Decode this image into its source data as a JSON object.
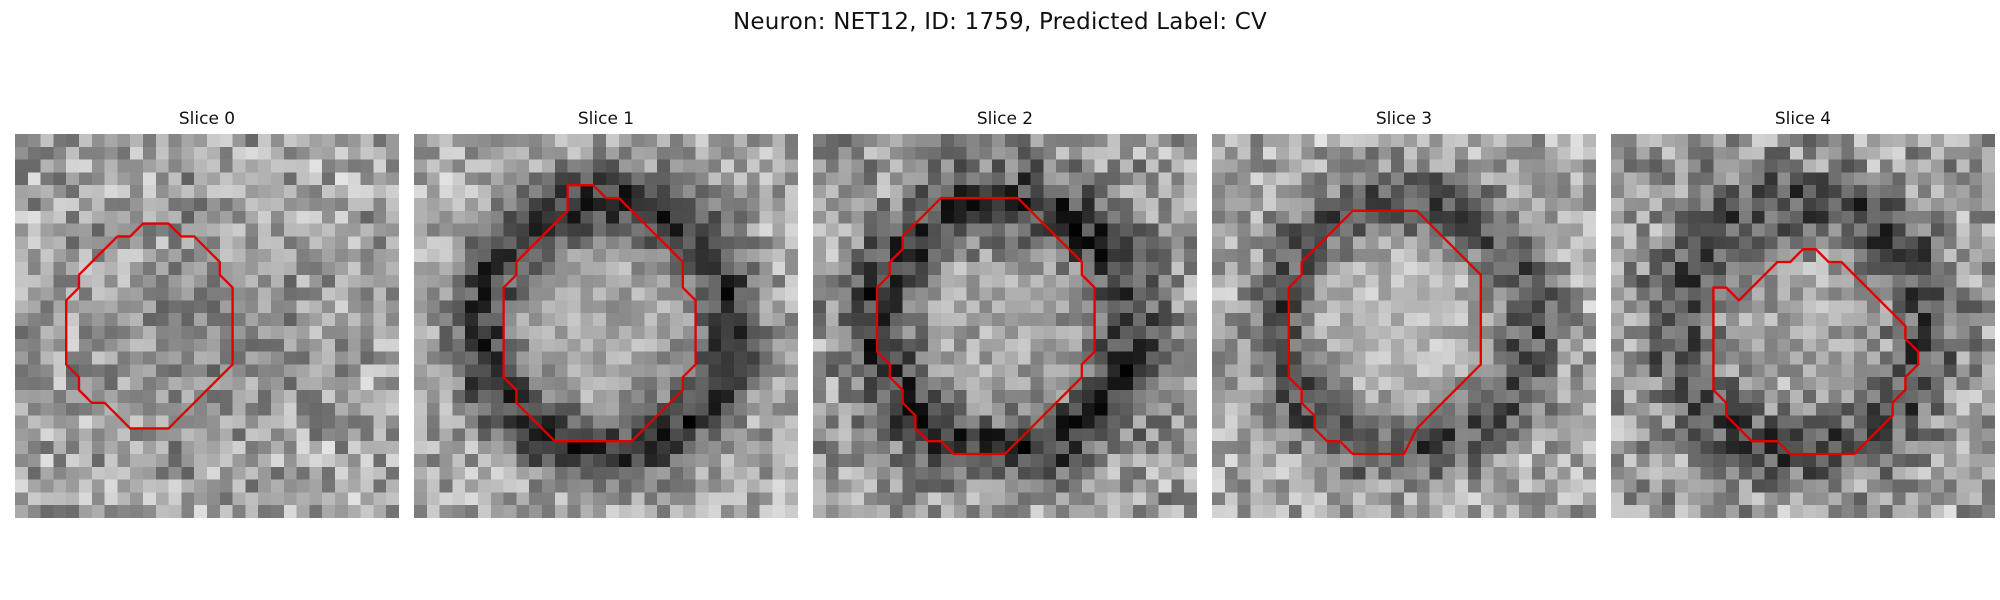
{
  "figure": {
    "title": "Neuron: NET12, ID: 1759, Predicted Label: CV"
  },
  "colors": {
    "background": "#ffffff",
    "contour": "#e00000",
    "text": "#111111"
  },
  "panels": [
    {
      "title": "Slice 0",
      "texture": {
        "seed": 11,
        "background_level": 0.64,
        "noise": 0.23,
        "ring_strength": 0.02,
        "core_level": 0.3,
        "core_strength": 0.4
      },
      "contour": [
        [
          10,
          7
        ],
        [
          12,
          7
        ],
        [
          13,
          8
        ],
        [
          14,
          8
        ],
        [
          15,
          9
        ],
        [
          16,
          10
        ],
        [
          16,
          11
        ],
        [
          17,
          12
        ],
        [
          17,
          13
        ],
        [
          17,
          14
        ],
        [
          17,
          15
        ],
        [
          17,
          16
        ],
        [
          17,
          17
        ],
        [
          17,
          18
        ],
        [
          16,
          19
        ],
        [
          15,
          20
        ],
        [
          14,
          21
        ],
        [
          13,
          22
        ],
        [
          12,
          23
        ],
        [
          10,
          23
        ],
        [
          9,
          23
        ],
        [
          8,
          22
        ],
        [
          7,
          21
        ],
        [
          6,
          21
        ],
        [
          5,
          20
        ],
        [
          5,
          19
        ],
        [
          4,
          18
        ],
        [
          4,
          17
        ],
        [
          4,
          16
        ],
        [
          4,
          15
        ],
        [
          4,
          14
        ],
        [
          4,
          13
        ],
        [
          5,
          12
        ],
        [
          5,
          11
        ],
        [
          6,
          10
        ],
        [
          7,
          9
        ],
        [
          8,
          8
        ],
        [
          9,
          8
        ],
        [
          10,
          7
        ]
      ]
    },
    {
      "title": "Slice 1",
      "texture": {
        "seed": 23,
        "background_level": 0.66,
        "noise": 0.2,
        "ring_strength": 0.46,
        "core_level": 0.6,
        "core_strength": 0.34
      },
      "contour": [
        [
          12,
          4
        ],
        [
          14,
          4
        ],
        [
          15,
          5
        ],
        [
          16,
          5
        ],
        [
          17,
          6
        ],
        [
          18,
          7
        ],
        [
          19,
          8
        ],
        [
          20,
          9
        ],
        [
          21,
          10
        ],
        [
          21,
          11
        ],
        [
          21,
          12
        ],
        [
          22,
          13
        ],
        [
          22,
          14
        ],
        [
          22,
          15
        ],
        [
          22,
          16
        ],
        [
          22,
          17
        ],
        [
          22,
          18
        ],
        [
          21,
          19
        ],
        [
          21,
          20
        ],
        [
          20,
          21
        ],
        [
          19,
          22
        ],
        [
          18,
          23
        ],
        [
          17,
          24
        ],
        [
          15,
          24
        ],
        [
          13,
          24
        ],
        [
          11,
          24
        ],
        [
          10,
          23
        ],
        [
          9,
          22
        ],
        [
          8,
          21
        ],
        [
          8,
          20
        ],
        [
          7,
          19
        ],
        [
          7,
          18
        ],
        [
          7,
          17
        ],
        [
          7,
          16
        ],
        [
          7,
          15
        ],
        [
          7,
          14
        ],
        [
          7,
          13
        ],
        [
          7,
          12
        ],
        [
          8,
          11
        ],
        [
          8,
          10
        ],
        [
          9,
          9
        ],
        [
          10,
          8
        ],
        [
          11,
          7
        ],
        [
          12,
          6
        ],
        [
          12,
          5
        ],
        [
          12,
          4
        ]
      ]
    },
    {
      "title": "Slice 2",
      "texture": {
        "seed": 37,
        "background_level": 0.6,
        "noise": 0.24,
        "ring_strength": 0.42,
        "core_level": 0.74,
        "core_strength": 0.42
      },
      "contour": [
        [
          11,
          5
        ],
        [
          13,
          5
        ],
        [
          15,
          5
        ],
        [
          16,
          5
        ],
        [
          17,
          6
        ],
        [
          18,
          7
        ],
        [
          19,
          8
        ],
        [
          20,
          9
        ],
        [
          21,
          10
        ],
        [
          21,
          11
        ],
        [
          22,
          12
        ],
        [
          22,
          13
        ],
        [
          22,
          14
        ],
        [
          22,
          15
        ],
        [
          22,
          16
        ],
        [
          22,
          17
        ],
        [
          21,
          18
        ],
        [
          21,
          19
        ],
        [
          20,
          20
        ],
        [
          19,
          21
        ],
        [
          18,
          22
        ],
        [
          17,
          23
        ],
        [
          16,
          24
        ],
        [
          15,
          25
        ],
        [
          13,
          25
        ],
        [
          11,
          25
        ],
        [
          10,
          24
        ],
        [
          9,
          24
        ],
        [
          8,
          23
        ],
        [
          8,
          22
        ],
        [
          7,
          21
        ],
        [
          7,
          20
        ],
        [
          6,
          19
        ],
        [
          6,
          18
        ],
        [
          5,
          17
        ],
        [
          5,
          16
        ],
        [
          5,
          15
        ],
        [
          5,
          14
        ],
        [
          5,
          13
        ],
        [
          5,
          12
        ],
        [
          6,
          11
        ],
        [
          6,
          10
        ],
        [
          7,
          9
        ],
        [
          7,
          8
        ],
        [
          8,
          7
        ],
        [
          9,
          6
        ],
        [
          10,
          5
        ],
        [
          11,
          5
        ]
      ]
    },
    {
      "title": "Slice 3",
      "texture": {
        "seed": 41,
        "background_level": 0.66,
        "noise": 0.21,
        "ring_strength": 0.38,
        "core_level": 0.8,
        "core_strength": 0.5
      },
      "contour": [
        [
          11,
          6
        ],
        [
          13,
          6
        ],
        [
          15,
          6
        ],
        [
          16,
          6
        ],
        [
          17,
          7
        ],
        [
          18,
          8
        ],
        [
          19,
          9
        ],
        [
          20,
          10
        ],
        [
          21,
          11
        ],
        [
          21,
          12
        ],
        [
          21,
          13
        ],
        [
          21,
          14
        ],
        [
          21,
          15
        ],
        [
          21,
          16
        ],
        [
          21,
          17
        ],
        [
          21,
          18
        ],
        [
          20,
          19
        ],
        [
          19,
          20
        ],
        [
          18,
          21
        ],
        [
          17,
          22
        ],
        [
          16,
          23
        ],
        [
          15,
          25
        ],
        [
          13,
          25
        ],
        [
          11,
          25
        ],
        [
          10,
          24
        ],
        [
          9,
          24
        ],
        [
          8,
          23
        ],
        [
          8,
          22
        ],
        [
          7,
          21
        ],
        [
          7,
          20
        ],
        [
          6,
          19
        ],
        [
          6,
          18
        ],
        [
          6,
          17
        ],
        [
          6,
          16
        ],
        [
          6,
          15
        ],
        [
          6,
          14
        ],
        [
          6,
          13
        ],
        [
          6,
          12
        ],
        [
          7,
          11
        ],
        [
          7,
          10
        ],
        [
          8,
          9
        ],
        [
          9,
          8
        ],
        [
          10,
          7
        ],
        [
          11,
          6
        ]
      ]
    },
    {
      "title": "Slice 4",
      "texture": {
        "seed": 59,
        "background_level": 0.62,
        "noise": 0.24,
        "ring_strength": 0.34,
        "core_level": 0.72,
        "core_strength": 0.32
      },
      "contour": [
        [
          16,
          9
        ],
        [
          17,
          10
        ],
        [
          18,
          10
        ],
        [
          19,
          11
        ],
        [
          20,
          12
        ],
        [
          21,
          13
        ],
        [
          22,
          14
        ],
        [
          23,
          15
        ],
        [
          23,
          16
        ],
        [
          24,
          17
        ],
        [
          24,
          18
        ],
        [
          23,
          19
        ],
        [
          23,
          20
        ],
        [
          22,
          21
        ],
        [
          22,
          22
        ],
        [
          21,
          23
        ],
        [
          20,
          24
        ],
        [
          19,
          25
        ],
        [
          17,
          25
        ],
        [
          15,
          25
        ],
        [
          14,
          25
        ],
        [
          13,
          24
        ],
        [
          11,
          24
        ],
        [
          10,
          23
        ],
        [
          9,
          22
        ],
        [
          9,
          21
        ],
        [
          8,
          20
        ],
        [
          8,
          19
        ],
        [
          8,
          18
        ],
        [
          8,
          17
        ],
        [
          8,
          16
        ],
        [
          8,
          15
        ],
        [
          8,
          14
        ],
        [
          8,
          13
        ],
        [
          8,
          12
        ],
        [
          9,
          12
        ],
        [
          10,
          13
        ],
        [
          11,
          12
        ],
        [
          12,
          11
        ],
        [
          13,
          10
        ],
        [
          14,
          10
        ],
        [
          15,
          9
        ],
        [
          16,
          9
        ]
      ]
    }
  ]
}
